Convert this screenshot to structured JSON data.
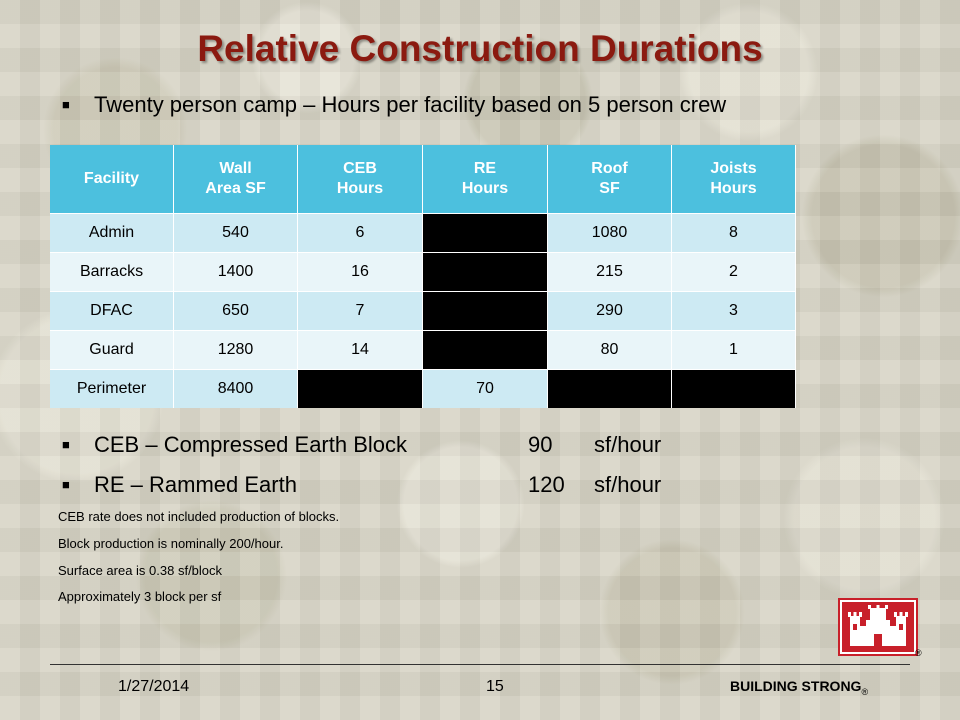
{
  "slide": {
    "title": "Relative Construction Durations",
    "subtitle_bullet": "Twenty person camp – Hours per facility based on 5 person crew",
    "table": {
      "headers": [
        [
          "Facility"
        ],
        [
          "Wall",
          "Area SF"
        ],
        [
          "CEB",
          "Hours"
        ],
        [
          "RE",
          "Hours"
        ],
        [
          "Roof",
          "SF"
        ],
        [
          "Joists",
          "Hours"
        ]
      ],
      "rows": [
        [
          "Admin",
          "540",
          "6",
          "",
          "1080",
          "8"
        ],
        [
          "Barracks",
          "1400",
          "16",
          "",
          "215",
          "2"
        ],
        [
          "DFAC",
          "650",
          "7",
          "",
          "290",
          "3"
        ],
        [
          "Guard",
          "1280",
          "14",
          "",
          "80",
          "1"
        ],
        [
          "Perimeter",
          "8400",
          "",
          "70",
          "",
          ""
        ]
      ]
    },
    "rates": [
      {
        "name": "CEB – Compressed Earth Block",
        "value": "90",
        "unit": "sf/hour"
      },
      {
        "name": "RE – Rammed Earth",
        "value": "120",
        "unit": "sf/hour"
      }
    ],
    "notes": [
      "CEB rate does not included production of blocks.",
      "Block production is nominally 200/hour.",
      "Surface area is 0.38 sf/block",
      "Approximately 3 block per sf"
    ],
    "footer": {
      "date": "1/27/2014",
      "page": "15",
      "brand": "BUILDING STRONG",
      "reg": "®"
    },
    "colors": {
      "title": "#8b1a10",
      "header_bg": "#4cc0de",
      "row_odd": "#cdeaf3",
      "row_even": "#e9f5f9",
      "logo": "#c8202a"
    },
    "icons": [
      "usace-castle-logo-icon"
    ]
  }
}
